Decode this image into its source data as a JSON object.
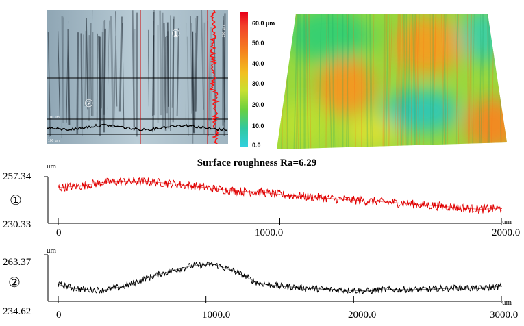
{
  "micrograph": {
    "region_labels": [
      "①",
      "②"
    ],
    "scale_labels": [
      "100 µm",
      "100 µm",
      "200 µm"
    ]
  },
  "colorbar": {
    "ticks": [
      "60.0 µm",
      "50.0",
      "40.0",
      "30.0",
      "20.0",
      "10.0",
      "0.0"
    ]
  },
  "title": "Surface roughness Ra=6.29",
  "colors": {
    "profile1": "#e00000",
    "profile2": "#000000",
    "axis": "#000000"
  },
  "chart_data": [
    {
      "type": "line",
      "marker": "①",
      "unit_y": "um",
      "unit_x": "um",
      "ylim": [
        230.33,
        257.34
      ],
      "ylim_labels": [
        "257.34",
        "230.33"
      ],
      "xlim": [
        0,
        2000
      ],
      "xtick_labels": [
        "0",
        "1000.0",
        "2000.0"
      ],
      "x": [
        0,
        100,
        200,
        300,
        400,
        500,
        600,
        700,
        800,
        900,
        1000,
        1100,
        1200,
        1300,
        1400,
        1500,
        1600,
        1700,
        1800,
        1900,
        2000
      ],
      "y": [
        251,
        252,
        254,
        254.5,
        254.5,
        253.5,
        252,
        250.5,
        249,
        248.5,
        247,
        246,
        245,
        244,
        243.2,
        242.5,
        241.5,
        240.5,
        239.5,
        238.5,
        239
      ]
    },
    {
      "type": "line",
      "marker": "②",
      "unit_y": "um",
      "unit_x": "um",
      "ylim": [
        234.62,
        263.37
      ],
      "ylim_labels": [
        "263.37",
        "234.62"
      ],
      "xlim": [
        0,
        3000
      ],
      "xtick_labels": [
        "0",
        "1000.0",
        "2000.0",
        "3000.0"
      ],
      "x": [
        0,
        150,
        300,
        450,
        600,
        750,
        900,
        1050,
        1200,
        1350,
        1500,
        1650,
        1800,
        1950,
        2100,
        2250,
        2400,
        2550,
        2700,
        2850,
        3000
      ],
      "y": [
        245,
        242,
        241.5,
        244,
        249,
        253,
        256.5,
        257.5,
        253,
        246,
        244,
        243,
        242,
        241.5,
        241,
        242,
        241.8,
        242.2,
        243,
        242.5,
        244
      ]
    }
  ]
}
